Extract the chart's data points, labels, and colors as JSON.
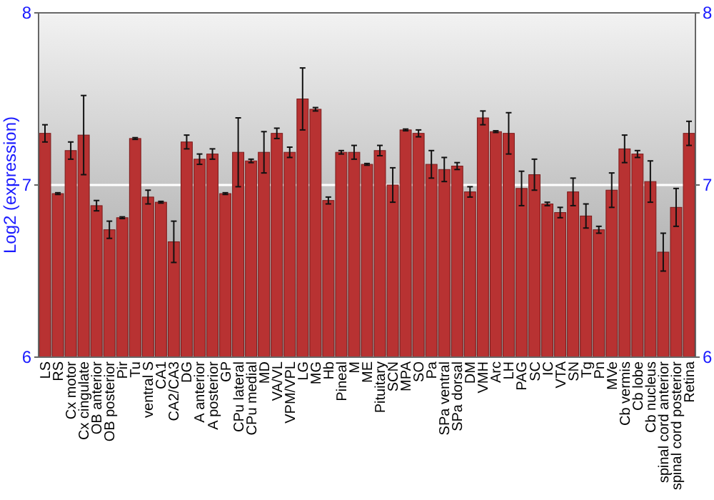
{
  "chart_data": {
    "type": "bar",
    "ylabel": "Log2 (expression)",
    "categories": [
      "LS",
      "RS",
      "Cx motor",
      "Cx cingulate",
      "OB anterior",
      "OB posterior",
      "Pir",
      "Tu",
      "ventral S",
      "CA1",
      "CA2/CA3",
      "DG",
      "A anterior",
      "A posterior",
      "GP",
      "CPu lateral",
      "CPu medial",
      "MD",
      "VA/VL",
      "VPM/VPL",
      "LG",
      "MG",
      "Hb",
      "Pineal",
      "M",
      "ME",
      "Pituitary",
      "SCN",
      "MPA",
      "SO",
      "Pa",
      "SPa ventral",
      "SPa dorsal",
      "DM",
      "VMH",
      "Arc",
      "LH",
      "PAG",
      "SC",
      "IC",
      "VTA",
      "SN",
      "Tg",
      "Pn",
      "MVe",
      "Cb vermis",
      "Cb lobe",
      "Cb nucleus",
      "spinal cord anterior",
      "spinal cord posterior",
      "Retina"
    ],
    "values": [
      7.3,
      6.95,
      7.2,
      7.29,
      6.88,
      6.74,
      6.81,
      7.27,
      6.93,
      6.9,
      6.67,
      7.25,
      7.15,
      7.18,
      6.95,
      7.19,
      7.14,
      7.19,
      7.3,
      7.19,
      7.5,
      7.44,
      6.91,
      7.19,
      7.19,
      7.12,
      7.2,
      7.0,
      7.32,
      7.3,
      7.12,
      7.09,
      7.11,
      6.96,
      7.39,
      7.31,
      7.3,
      6.98,
      7.06,
      6.89,
      6.84,
      6.96,
      6.82,
      6.74,
      6.97,
      7.21,
      7.18,
      7.02,
      6.61,
      6.87,
      7.3
    ],
    "errors": [
      0.05,
      0.005,
      0.05,
      0.23,
      0.03,
      0.05,
      0.005,
      0.005,
      0.04,
      0.005,
      0.12,
      0.04,
      0.03,
      0.03,
      0.005,
      0.2,
      0.01,
      0.12,
      0.03,
      0.03,
      0.18,
      0.01,
      0.02,
      0.01,
      0.04,
      0.005,
      0.03,
      0.1,
      0.005,
      0.02,
      0.08,
      0.07,
      0.02,
      0.03,
      0.04,
      0.005,
      0.12,
      0.1,
      0.09,
      0.01,
      0.03,
      0.08,
      0.07,
      0.02,
      0.1,
      0.08,
      0.02,
      0.12,
      0.11,
      0.11,
      0.07
    ],
    "color": "#b83232",
    "ylim": [
      6,
      8
    ],
    "yticks": [
      6,
      7,
      8
    ],
    "y2lim": [
      6,
      8
    ],
    "y2ticks": [
      6,
      7,
      8
    ],
    "grid": "y"
  }
}
